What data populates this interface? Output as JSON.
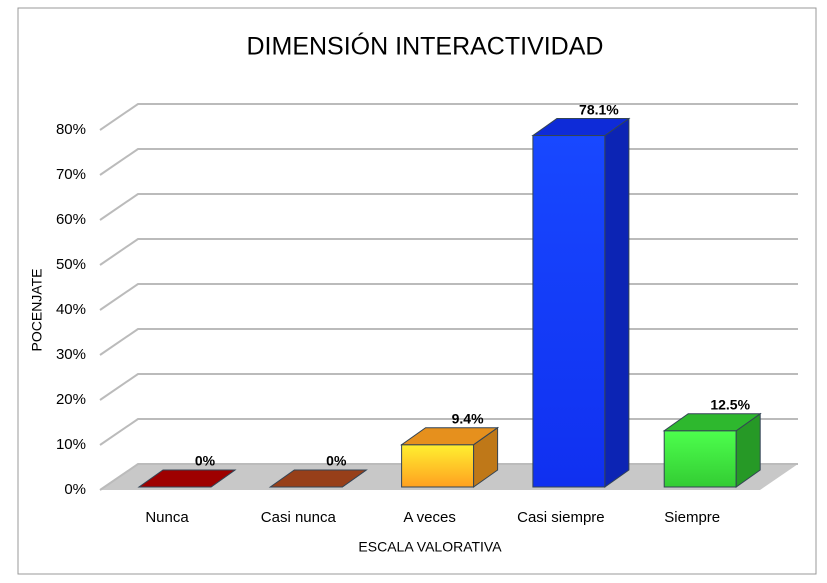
{
  "chart_data": {
    "type": "bar3d",
    "title": "DIMENSIÓN INTERACTIVIDAD",
    "x_label": "ESCALA VALORATIVA",
    "y_label": "POCENJATE",
    "categories": [
      "Nunca",
      "Casi nunca",
      "A veces",
      "Casi siempre",
      "Siempre"
    ],
    "values": [
      0,
      0,
      9.4,
      78.1,
      12.5
    ],
    "value_labels": [
      "0%",
      "0%",
      "9.4%",
      "78.1%",
      "12.5%"
    ],
    "colors": [
      "#b00000",
      "#a8461c",
      "#ffa020",
      "#1030f0",
      "#33cc33"
    ],
    "ylim": [
      0,
      80
    ],
    "yticks": [
      {
        "value": 0,
        "label": "0%"
      },
      {
        "value": 10,
        "label": "10%"
      },
      {
        "value": 20,
        "label": "20%"
      },
      {
        "value": 30,
        "label": "30%"
      },
      {
        "value": 40,
        "label": "40%"
      },
      {
        "value": 50,
        "label": "50%"
      },
      {
        "value": 60,
        "label": "60%"
      },
      {
        "value": 70,
        "label": "70%"
      },
      {
        "value": 80,
        "label": "80%"
      }
    ],
    "grid": true
  }
}
